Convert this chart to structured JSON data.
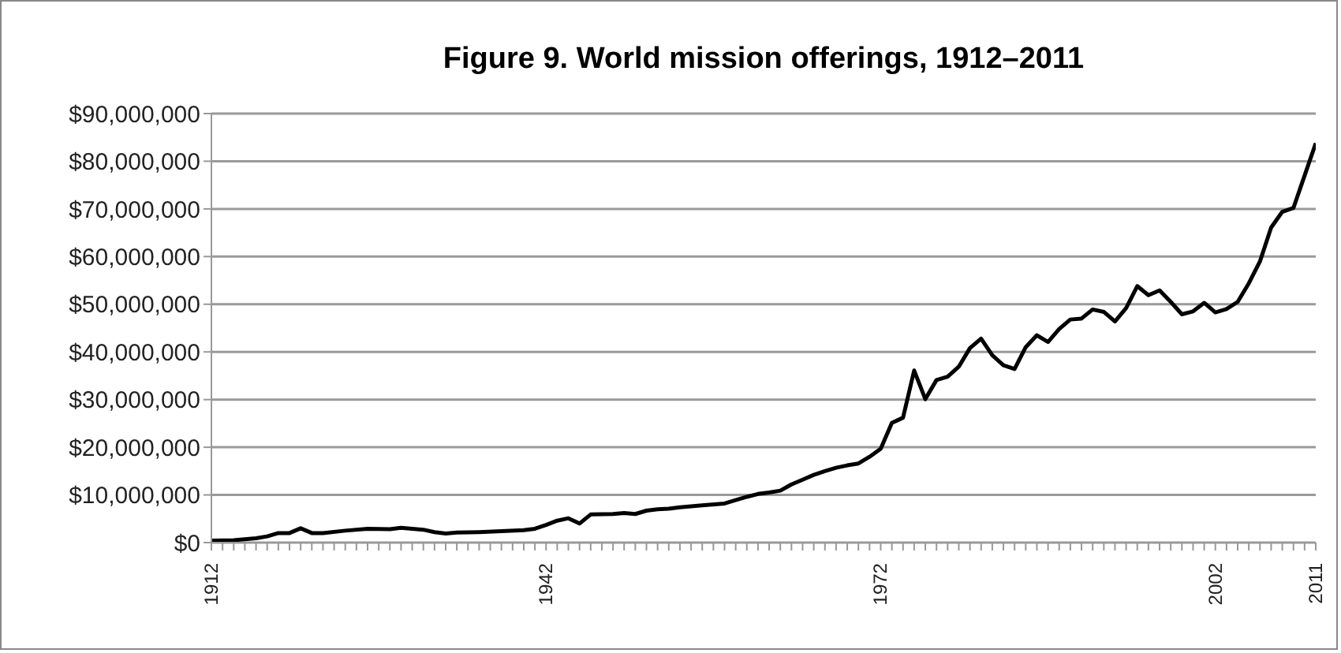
{
  "chart_data": {
    "type": "line",
    "title": "Figure 9. World mission offerings, 1912–2011",
    "x": [
      1912,
      1914,
      1916,
      1917,
      1918,
      1919,
      1920,
      1921,
      1922,
      1924,
      1926,
      1928,
      1929,
      1931,
      1932,
      1933,
      1934,
      1936,
      1938,
      1940,
      1941,
      1942,
      1943,
      1944,
      1945,
      1946,
      1948,
      1949,
      1950,
      1951,
      1952,
      1953,
      1954,
      1956,
      1958,
      1960,
      1961,
      1962,
      1963,
      1964,
      1965,
      1966,
      1967,
      1968,
      1969,
      1970,
      1971,
      1972,
      1973,
      1974,
      1975,
      1976,
      1977,
      1978,
      1979,
      1980,
      1981,
      1982,
      1983,
      1984,
      1985,
      1986,
      1987,
      1988,
      1989,
      1990,
      1991,
      1992,
      1993,
      1994,
      1995,
      1996,
      1997,
      1998,
      1999,
      2000,
      2001,
      2002,
      2003,
      2004,
      2005,
      2006,
      2007,
      2008,
      2009,
      2010,
      2011
    ],
    "series": [
      {
        "color": "#000000",
        "values": [
          400000,
          500000,
          900000,
          1300000,
          2000000,
          2000000,
          3000000,
          2000000,
          2000000,
          2500000,
          2900000,
          2800000,
          3100000,
          2700000,
          2200000,
          1900000,
          2100000,
          2200000,
          2400000,
          2600000,
          2900000,
          3700000,
          4600000,
          5100000,
          4000000,
          5900000,
          6000000,
          6200000,
          6000000,
          6700000,
          7000000,
          7100000,
          7400000,
          7800000,
          8200000,
          9600000,
          10200000,
          10500000,
          10900000,
          12200000,
          13200000,
          14200000,
          15000000,
          15700000,
          16200000,
          16600000,
          18000000,
          19700000,
          25100000,
          26200000,
          36100000,
          30100000,
          34100000,
          34800000,
          36900000,
          40800000,
          42800000,
          39300000,
          37200000,
          36400000,
          41000000,
          43500000,
          42100000,
          44800000,
          46800000,
          47000000,
          48900000,
          48400000,
          46400000,
          49200000,
          53800000,
          51900000,
          52900000,
          50500000,
          47900000,
          48500000,
          50300000,
          48300000,
          49000000,
          50500000,
          54400000,
          59000000,
          66100000,
          69400000,
          70200000,
          77000000,
          83800000
        ]
      }
    ],
    "xlim": [
      1912,
      2011
    ],
    "xticks": [
      1912,
      {
        "value": 1913,
        "label": null
      },
      {
        "value": 1914,
        "label": null
      },
      {
        "value": 1915,
        "label": null
      },
      {
        "value": 1916,
        "label": null
      },
      {
        "value": 1917,
        "label": null
      },
      {
        "value": 1918,
        "label": null
      },
      {
        "value": 1919,
        "label": null
      },
      {
        "value": 1920,
        "label": null
      },
      {
        "value": 1921,
        "label": null
      },
      {
        "value": 1922,
        "label": null
      },
      {
        "value": 1923,
        "label": null
      },
      {
        "value": 1924,
        "label": null
      },
      {
        "value": 1925,
        "label": null
      },
      {
        "value": 1926,
        "label": null
      },
      {
        "value": 1927,
        "label": null
      },
      {
        "value": 1928,
        "label": null
      },
      {
        "value": 1929,
        "label": null
      },
      {
        "value": 1930,
        "label": null
      },
      {
        "value": 1931,
        "label": null
      },
      {
        "value": 1932,
        "label": null
      },
      {
        "value": 1933,
        "label": null
      },
      {
        "value": 1934,
        "label": null
      },
      {
        "value": 1935,
        "label": null
      },
      {
        "value": 1936,
        "label": null
      },
      {
        "value": 1937,
        "label": null
      },
      {
        "value": 1938,
        "label": null
      },
      {
        "value": 1939,
        "label": null
      },
      {
        "value": 1940,
        "label": null
      },
      {
        "value": 1941,
        "label": null
      },
      1942,
      {
        "value": 1943,
        "label": null
      },
      {
        "value": 1944,
        "label": null
      },
      {
        "value": 1945,
        "label": null
      },
      {
        "value": 1946,
        "label": null
      },
      {
        "value": 1947,
        "label": null
      },
      {
        "value": 1948,
        "label": null
      },
      {
        "value": 1949,
        "label": null
      },
      {
        "value": 1950,
        "label": null
      },
      {
        "value": 1951,
        "label": null
      },
      {
        "value": 1952,
        "label": null
      },
      {
        "value": 1953,
        "label": null
      },
      {
        "value": 1954,
        "label": null
      },
      {
        "value": 1955,
        "label": null
      },
      {
        "value": 1956,
        "label": null
      },
      {
        "value": 1957,
        "label": null
      },
      {
        "value": 1958,
        "label": null
      },
      {
        "value": 1959,
        "label": null
      },
      {
        "value": 1960,
        "label": null
      },
      {
        "value": 1961,
        "label": null
      },
      {
        "value": 1962,
        "label": null
      },
      {
        "value": 1963,
        "label": null
      },
      {
        "value": 1964,
        "label": null
      },
      {
        "value": 1965,
        "label": null
      },
      {
        "value": 1966,
        "label": null
      },
      {
        "value": 1967,
        "label": null
      },
      {
        "value": 1968,
        "label": null
      },
      {
        "value": 1969,
        "label": null
      },
      {
        "value": 1970,
        "label": null
      },
      {
        "value": 1971,
        "label": null
      },
      1972,
      {
        "value": 1973,
        "label": null
      },
      {
        "value": 1974,
        "label": null
      },
      {
        "value": 1975,
        "label": null
      },
      {
        "value": 1976,
        "label": null
      },
      {
        "value": 1977,
        "label": null
      },
      {
        "value": 1978,
        "label": null
      },
      {
        "value": 1979,
        "label": null
      },
      {
        "value": 1980,
        "label": null
      },
      {
        "value": 1981,
        "label": null
      },
      {
        "value": 1982,
        "label": null
      },
      {
        "value": 1983,
        "label": null
      },
      {
        "value": 1984,
        "label": null
      },
      {
        "value": 1985,
        "label": null
      },
      {
        "value": 1986,
        "label": null
      },
      {
        "value": 1987,
        "label": null
      },
      {
        "value": 1988,
        "label": null
      },
      {
        "value": 1989,
        "label": null
      },
      {
        "value": 1990,
        "label": null
      },
      {
        "value": 1991,
        "label": null
      },
      {
        "value": 1992,
        "label": null
      },
      {
        "value": 1993,
        "label": null
      },
      {
        "value": 1994,
        "label": null
      },
      {
        "value": 1995,
        "label": null
      },
      {
        "value": 1996,
        "label": null
      },
      {
        "value": 1997,
        "label": null
      },
      {
        "value": 1998,
        "label": null
      },
      {
        "value": 1999,
        "label": null
      },
      {
        "value": 2000,
        "label": null
      },
      {
        "value": 2001,
        "label": null
      },
      2002,
      {
        "value": 2003,
        "label": null
      },
      {
        "value": 2004,
        "label": null
      },
      {
        "value": 2005,
        "label": null
      },
      {
        "value": 2006,
        "label": null
      },
      {
        "value": 2007,
        "label": null
      },
      {
        "value": 2008,
        "label": null
      },
      {
        "value": 2009,
        "label": null
      },
      {
        "value": 2010,
        "label": null
      },
      2011
    ],
    "ylim": [
      0,
      90000000
    ],
    "yticks": [
      {
        "value": 0,
        "label": "$0"
      },
      {
        "value": 10000000,
        "label": "$10,000,000"
      },
      {
        "value": 20000000,
        "label": "$20,000,000"
      },
      {
        "value": 30000000,
        "label": "$30,000,000"
      },
      {
        "value": 40000000,
        "label": "$40,000,000"
      },
      {
        "value": 50000000,
        "label": "$50,000,000"
      },
      {
        "value": 60000000,
        "label": "$60,000,000"
      },
      {
        "value": 70000000,
        "label": "$70,000,000"
      },
      {
        "value": 80000000,
        "label": "$80,000,000"
      },
      {
        "value": 90000000,
        "label": "$90,000,000"
      }
    ],
    "grid": "y",
    "legend": false,
    "marker": "none",
    "line_style": "solid"
  }
}
